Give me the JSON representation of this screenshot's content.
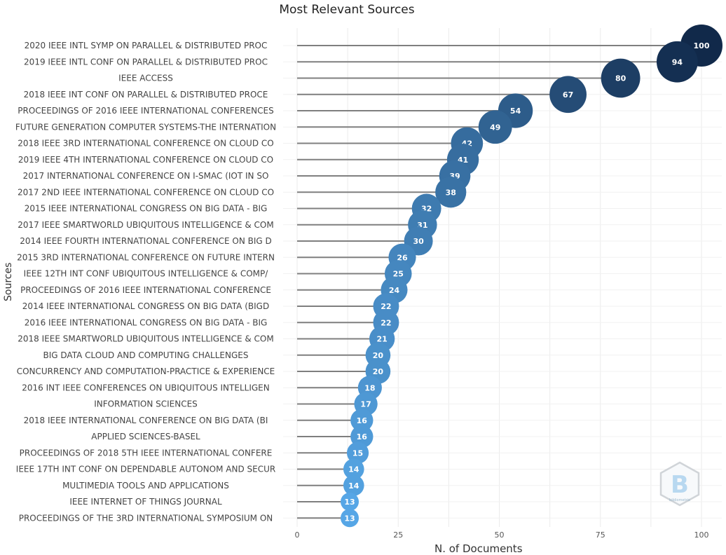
{
  "chart_data": {
    "type": "lollipop",
    "title": "Most Relevant Sources",
    "xlabel": "N. of Documents",
    "ylabel": "Sources",
    "xlim": [
      0,
      100
    ],
    "xticks": [
      0,
      25,
      50,
      75,
      100
    ],
    "grid": true,
    "categories": [
      "2020 IEEE INTL SYMP ON PARALLEL & DISTRIBUTED PROC",
      "2019 IEEE INTL CONF ON PARALLEL & DISTRIBUTED PROC",
      "IEEE ACCESS",
      "2018 IEEE INT CONF ON PARALLEL & DISTRIBUTED PROCE",
      "PROCEEDINGS OF 2016 IEEE INTERNATIONAL CONFERENCES",
      "FUTURE GENERATION COMPUTER SYSTEMS-THE INTERNATION",
      "2018 IEEE 3RD INTERNATIONAL CONFERENCE ON CLOUD CO",
      "2019 IEEE 4TH INTERNATIONAL CONFERENCE ON CLOUD CO",
      "2017 INTERNATIONAL CONFERENCE ON I-SMAC (IOT IN SO",
      "2017 2ND IEEE INTERNATIONAL CONFERENCE ON CLOUD CO",
      "2015 IEEE INTERNATIONAL CONGRESS ON BIG DATA - BIG",
      "2017 IEEE SMARTWORLD UBIQUITOUS INTELLIGENCE & COM",
      "2014 IEEE FOURTH INTERNATIONAL CONFERENCE ON BIG D",
      "2015 3RD INTERNATIONAL CONFERENCE ON FUTURE INTERN",
      "IEEE 12TH INT CONF UBIQUITOUS INTELLIGENCE & COMP/",
      "PROCEEDINGS OF 2016 IEEE INTERNATIONAL CONFERENCE",
      "2014 IEEE INTERNATIONAL CONGRESS ON BIG DATA (BIGD",
      "2016 IEEE INTERNATIONAL CONGRESS ON BIG DATA - BIG",
      "2018 IEEE SMARTWORLD UBIQUITOUS INTELLIGENCE & COM",
      "BIG DATA CLOUD AND COMPUTING CHALLENGES",
      "CONCURRENCY AND COMPUTATION-PRACTICE & EXPERIENCE",
      "2016 INT IEEE CONFERENCES ON UBIQUITOUS INTELLIGEN",
      "INFORMATION SCIENCES",
      "2018 IEEE INTERNATIONAL CONFERENCE ON BIG DATA (BI",
      "APPLIED SCIENCES-BASEL",
      "PROCEEDINGS OF 2018 5TH IEEE INTERNATIONAL CONFERE",
      "IEEE 17TH INT CONF ON DEPENDABLE AUTONOM AND SECUR",
      "MULTIMEDIA TOOLS AND APPLICATIONS",
      "IEEE INTERNET OF THINGS JOURNAL",
      "PROCEEDINGS OF THE 3RD INTERNATIONAL SYMPOSIUM ON"
    ],
    "values": [
      100,
      94,
      80,
      67,
      54,
      49,
      42,
      41,
      39,
      38,
      32,
      31,
      30,
      26,
      25,
      24,
      22,
      22,
      21,
      20,
      20,
      18,
      17,
      16,
      16,
      15,
      14,
      14,
      13,
      13
    ],
    "colors": {
      "low": "#56a6e6",
      "high": "#11294a",
      "stem": "#7f7f7f",
      "grid": "#ebebeb",
      "label_text": "#ffffff"
    }
  },
  "logo": {
    "text": "bibliometrix"
  }
}
